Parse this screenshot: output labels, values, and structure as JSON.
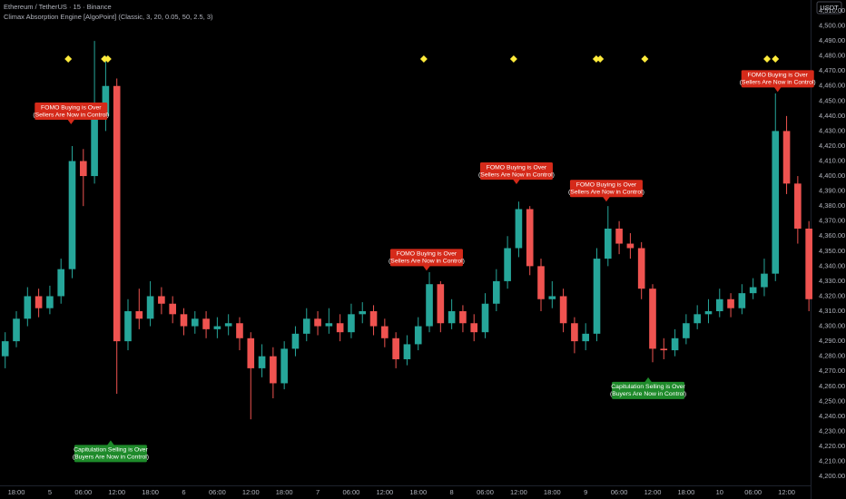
{
  "header": {
    "symbol": "Ethereum / TetherUS · 15 · Binance",
    "indicator": "Climax Absorption Engine [AlgoPoint] (Classic, 3, 20, 0.05, 50, 2.5, 3)",
    "currency": "USDT"
  },
  "chart_data": {
    "type": "candlestick",
    "up_color": "#26a69a",
    "down_color": "#ef5350",
    "signal_color": "#ffeb3b",
    "x": [
      16,
      18,
      20,
      22,
      24,
      26,
      28,
      30,
      32,
      34,
      36,
      38,
      40,
      42,
      44,
      46,
      48,
      50,
      52,
      54,
      56,
      58,
      60,
      62,
      64,
      66,
      68,
      70,
      72,
      74,
      76,
      78,
      80,
      82,
      84,
      86,
      88,
      90,
      92,
      94,
      96,
      98,
      100,
      102,
      104,
      106,
      108,
      110,
      112,
      114,
      116,
      118,
      120,
      122,
      124,
      126,
      128,
      130,
      132,
      134,
      136,
      138,
      140,
      142,
      144,
      146,
      148,
      150,
      152,
      154,
      156,
      158,
      160
    ],
    "open": [
      4280,
      4290,
      4305,
      4320,
      4312,
      4320,
      4338,
      4410,
      4400,
      4440,
      4460,
      4290,
      4310,
      4305,
      4320,
      4315,
      4308,
      4300,
      4305,
      4298,
      4300,
      4302,
      4292,
      4272,
      4280,
      4262,
      4285,
      4295,
      4305,
      4300,
      4302,
      4296,
      4308,
      4310,
      4300,
      4292,
      4278,
      4288,
      4300,
      4328,
      4302,
      4310,
      4302,
      4296,
      4315,
      4330,
      4352,
      4378,
      4340,
      4318,
      4320,
      4302,
      4290,
      4295,
      4345,
      4365,
      4355,
      4352,
      4325,
      4285,
      4284,
      4292,
      4302,
      4308,
      4310,
      4318,
      4312,
      4322,
      4326,
      4335,
      4430,
      4395,
      4365
    ],
    "high": [
      4296,
      4310,
      4326,
      4325,
      4327,
      4345,
      4420,
      4418,
      4490,
      4480,
      4465,
      4318,
      4325,
      4330,
      4326,
      4320,
      4312,
      4310,
      4310,
      4306,
      4308,
      4306,
      4296,
      4288,
      4286,
      4290,
      4300,
      4312,
      4310,
      4312,
      4308,
      4315,
      4316,
      4314,
      4305,
      4296,
      4294,
      4306,
      4336,
      4330,
      4318,
      4314,
      4308,
      4322,
      4338,
      4360,
      4383,
      4380,
      4345,
      4330,
      4325,
      4306,
      4302,
      4352,
      4380,
      4370,
      4362,
      4356,
      4328,
      4292,
      4298,
      4308,
      4314,
      4318,
      4325,
      4322,
      4328,
      4332,
      4345,
      4455,
      4440,
      4400,
      4370
    ],
    "low": [
      4272,
      4286,
      4300,
      4306,
      4308,
      4315,
      4332,
      4380,
      4395,
      4430,
      4255,
      4284,
      4298,
      4300,
      4308,
      4302,
      4294,
      4295,
      4292,
      4292,
      4294,
      4284,
      4238,
      4266,
      4252,
      4258,
      4280,
      4290,
      4294,
      4295,
      4290,
      4292,
      4302,
      4294,
      4286,
      4272,
      4274,
      4284,
      4296,
      4296,
      4298,
      4296,
      4290,
      4292,
      4310,
      4325,
      4346,
      4334,
      4310,
      4312,
      4296,
      4282,
      4284,
      4290,
      4340,
      4348,
      4345,
      4318,
      4276,
      4278,
      4280,
      4288,
      4298,
      4302,
      4306,
      4306,
      4308,
      4318,
      4320,
      4330,
      4388,
      4355,
      4310
    ],
    "close": [
      4290,
      4305,
      4320,
      4312,
      4320,
      4338,
      4410,
      4400,
      4440,
      4460,
      4290,
      4310,
      4305,
      4320,
      4315,
      4308,
      4300,
      4305,
      4298,
      4300,
      4302,
      4292,
      4272,
      4280,
      4262,
      4285,
      4295,
      4305,
      4300,
      4302,
      4296,
      4308,
      4310,
      4300,
      4292,
      4278,
      4288,
      4300,
      4328,
      4302,
      4310,
      4302,
      4296,
      4315,
      4330,
      4352,
      4378,
      4340,
      4318,
      4320,
      4302,
      4290,
      4295,
      4345,
      4365,
      4355,
      4352,
      4325,
      4285,
      4284,
      4292,
      4302,
      4308,
      4310,
      4318,
      4312,
      4322,
      4326,
      4335,
      4430,
      4395,
      4365,
      4318
    ],
    "signal_x": [
      27.3,
      33.8,
      34.4,
      91,
      107.1,
      121.9,
      122.6,
      130.6,
      152.5,
      154
    ],
    "annotations": [
      {
        "x": 27.8,
        "y": 4434.5,
        "position": "above",
        "color": "#d52a1a",
        "lines": [
          "FOMO Buying is Over",
          "(Sellers Are Now in Control)"
        ]
      },
      {
        "x": 91.5,
        "y": 4337,
        "position": "above",
        "color": "#d52a1a",
        "lines": [
          "FOMO Buying is Over",
          "(Sellers Are Now in Control)"
        ]
      },
      {
        "x": 107.6,
        "y": 4394.6,
        "position": "above",
        "color": "#d52a1a",
        "lines": [
          "FOMO Buying is Over",
          "(Sellers Are Now in Control)"
        ]
      },
      {
        "x": 123.7,
        "y": 4383,
        "position": "above",
        "color": "#d52a1a",
        "lines": [
          "FOMO Buying is Over",
          "(Sellers Are Now in Control)"
        ]
      },
      {
        "x": 154.4,
        "y": 4456,
        "position": "above",
        "color": "#d52a1a",
        "lines": [
          "FOMO Buying is Over",
          "(Sellers Are Now in Control)"
        ]
      },
      {
        "x": 34.9,
        "y": 4224,
        "position": "below",
        "color": "#1e8a2a",
        "lines": [
          "Capitulation Selling is Over",
          "(Buyers Are Now in Control)"
        ]
      },
      {
        "x": 131.2,
        "y": 4266,
        "position": "below",
        "color": "#1e8a2a",
        "lines": [
          "Capitulation Selling is Over",
          "(Buyers Are Now in Control)"
        ]
      }
    ],
    "xlim": [
      15.07,
      160.3
    ],
    "xticks": [
      {
        "value": 18,
        "label": "18:00"
      },
      {
        "value": 24,
        "label": "5"
      },
      {
        "value": 30,
        "label": "06:00"
      },
      {
        "value": 36,
        "label": "12:00"
      },
      {
        "value": 42,
        "label": "18:00"
      },
      {
        "value": 48,
        "label": "6"
      },
      {
        "value": 54,
        "label": "06:00"
      },
      {
        "value": 60,
        "label": "12:00"
      },
      {
        "value": 66,
        "label": "18:00"
      },
      {
        "value": 72,
        "label": "7"
      },
      {
        "value": 78,
        "label": "06:00"
      },
      {
        "value": 84,
        "label": "12:00"
      },
      {
        "value": 90,
        "label": "18:00"
      },
      {
        "value": 96,
        "label": "8"
      },
      {
        "value": 102,
        "label": "06:00"
      },
      {
        "value": 108,
        "label": "12:00"
      },
      {
        "value": 114,
        "label": "18:00"
      },
      {
        "value": 120,
        "label": "9"
      },
      {
        "value": 126,
        "label": "06:00"
      },
      {
        "value": 132,
        "label": "12:00"
      },
      {
        "value": 138,
        "label": "18:00"
      },
      {
        "value": 144,
        "label": "10"
      },
      {
        "value": 150,
        "label": "06:00"
      },
      {
        "value": 156,
        "label": "12:00"
      }
    ],
    "ylim": [
      4194,
      4517.25
    ],
    "yticks": [
      {
        "value": 4200,
        "label": "4,200.00"
      },
      {
        "value": 4210,
        "label": "4,210.00"
      },
      {
        "value": 4220,
        "label": "4,220.00"
      },
      {
        "value": 4230,
        "label": "4,230.00"
      },
      {
        "value": 4240,
        "label": "4,240.00"
      },
      {
        "value": 4250,
        "label": "4,250.00"
      },
      {
        "value": 4260,
        "label": "4,260.00"
      },
      {
        "value": 4270,
        "label": "4,270.00"
      },
      {
        "value": 4280,
        "label": "4,280.00"
      },
      {
        "value": 4290,
        "label": "4,290.00"
      },
      {
        "value": 4300,
        "label": "4,300.00"
      },
      {
        "value": 4310,
        "label": "4,310.00"
      },
      {
        "value": 4320,
        "label": "4,320.00"
      },
      {
        "value": 4330,
        "label": "4,330.00"
      },
      {
        "value": 4340,
        "label": "4,340.00"
      },
      {
        "value": 4350,
        "label": "4,350.00"
      },
      {
        "value": 4360,
        "label": "4,360.00"
      },
      {
        "value": 4370,
        "label": "4,370.00"
      },
      {
        "value": 4380,
        "label": "4,380.00"
      },
      {
        "value": 4390,
        "label": "4,390.00"
      },
      {
        "value": 4400,
        "label": "4,400.00"
      },
      {
        "value": 4410,
        "label": "4,410.00"
      },
      {
        "value": 4420,
        "label": "4,420.00"
      },
      {
        "value": 4430,
        "label": "4,430.00"
      },
      {
        "value": 4440,
        "label": "4,440.00"
      },
      {
        "value": 4450,
        "label": "4,450.00"
      },
      {
        "value": 4460,
        "label": "4,460.00"
      },
      {
        "value": 4470,
        "label": "4,470.00"
      },
      {
        "value": 4480,
        "label": "4,480.00"
      },
      {
        "value": 4490,
        "label": "4,490.00"
      },
      {
        "value": 4500,
        "label": "4,500.00"
      },
      {
        "value": 4510,
        "label": "4,510.00"
      }
    ]
  }
}
